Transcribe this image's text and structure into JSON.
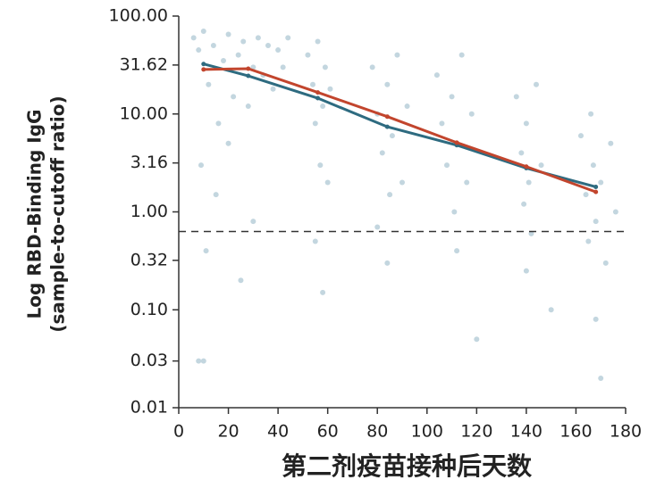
{
  "chart_data": {
    "type": "scatter",
    "ylabel": [
      "Log RBD-Binding IgG",
      "(sample-to-cutoff ratio)"
    ],
    "xlabel": "第二剂疫苗接种后天数",
    "xlim": [
      0,
      180
    ],
    "xticks": [
      0,
      20,
      40,
      60,
      80,
      100,
      120,
      140,
      160,
      180
    ],
    "ylim": [
      0.01,
      100
    ],
    "log_y": true,
    "yticks": [
      {
        "value": 100,
        "label": "100.00"
      },
      31.62,
      {
        "value": 10,
        "label": "10.00"
      },
      3.16,
      {
        "value": 1,
        "label": "1.00"
      },
      0.32,
      {
        "value": 0.1,
        "label": "0.10"
      },
      0.03,
      0.01
    ],
    "reference_line": 0.63,
    "series": [
      {
        "type": "scatter",
        "color": "#c3d6df",
        "x": [
          6,
          8,
          10,
          12,
          14,
          16,
          18,
          20,
          22,
          24,
          26,
          28,
          30,
          32,
          34,
          36,
          38,
          40,
          42,
          44,
          9,
          15,
          11,
          8,
          10,
          25,
          30,
          20,
          52,
          54,
          55,
          56,
          57,
          58,
          59,
          60,
          61,
          55,
          58,
          78,
          80,
          82,
          84,
          85,
          86,
          88,
          90,
          84,
          80,
          92,
          104,
          106,
          108,
          110,
          111,
          112,
          114,
          116,
          112,
          118,
          120,
          136,
          138,
          139,
          140,
          141,
          142,
          144,
          146,
          140,
          150,
          162,
          164,
          165,
          166,
          167,
          168,
          170,
          172,
          174,
          176,
          168,
          170
        ],
        "values": [
          60,
          45,
          70,
          20,
          50,
          8,
          35,
          65,
          15,
          40,
          55,
          12,
          30,
          60,
          25,
          50,
          18,
          45,
          30,
          60,
          3,
          1.5,
          0.4,
          0.03,
          0.03,
          0.2,
          0.8,
          5,
          40,
          20,
          8,
          55,
          3,
          12,
          30,
          2,
          18,
          0.5,
          0.15,
          30,
          10,
          4,
          20,
          1.5,
          6,
          40,
          2,
          0.3,
          0.7,
          12,
          25,
          8,
          3,
          15,
          1,
          5,
          40,
          2,
          0.4,
          10,
          0.05,
          15,
          4,
          1.2,
          8,
          2,
          0.6,
          20,
          3,
          0.25,
          0.1,
          6,
          1.5,
          0.5,
          10,
          3,
          0.8,
          2,
          0.3,
          5,
          1,
          0.08,
          0.02
        ]
      },
      {
        "type": "line",
        "color": "#2e6b80",
        "x": [
          10,
          28,
          56,
          84,
          112,
          140,
          168
        ],
        "values": [
          32.4,
          24.5,
          14.5,
          7.4,
          4.8,
          2.8,
          1.8
        ]
      },
      {
        "type": "line",
        "color": "#c2452d",
        "x": [
          10,
          28,
          56,
          84,
          112,
          140,
          168
        ],
        "values": [
          28.5,
          29,
          16.6,
          9.4,
          5.1,
          2.9,
          1.6
        ]
      }
    ]
  }
}
